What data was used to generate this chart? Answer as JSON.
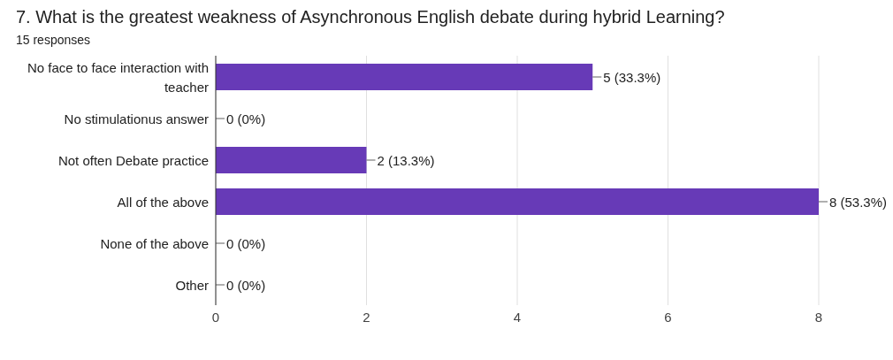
{
  "chart_data": {
    "type": "bar",
    "orientation": "horizontal",
    "title": "7. What is the greatest weakness of Asynchronous English debate during hybrid Learning?",
    "subtitle": "15 responses",
    "categories": [
      "No face to face interaction with teacher",
      "No stimulationus answer",
      "Not often Debate practice",
      "All of the above",
      "None of the above",
      "Other"
    ],
    "values": [
      5,
      0,
      2,
      8,
      0,
      0
    ],
    "value_labels": [
      "5 (33.3%)",
      "0 (0%)",
      "2 (13.3%)",
      "8 (53.3%)",
      "0 (0%)",
      "0 (0%)"
    ],
    "color": "#673ab7",
    "xlim": [
      0,
      8
    ],
    "xticks": [
      0,
      2,
      4,
      6,
      8
    ],
    "grid": "x",
    "legend": false
  }
}
